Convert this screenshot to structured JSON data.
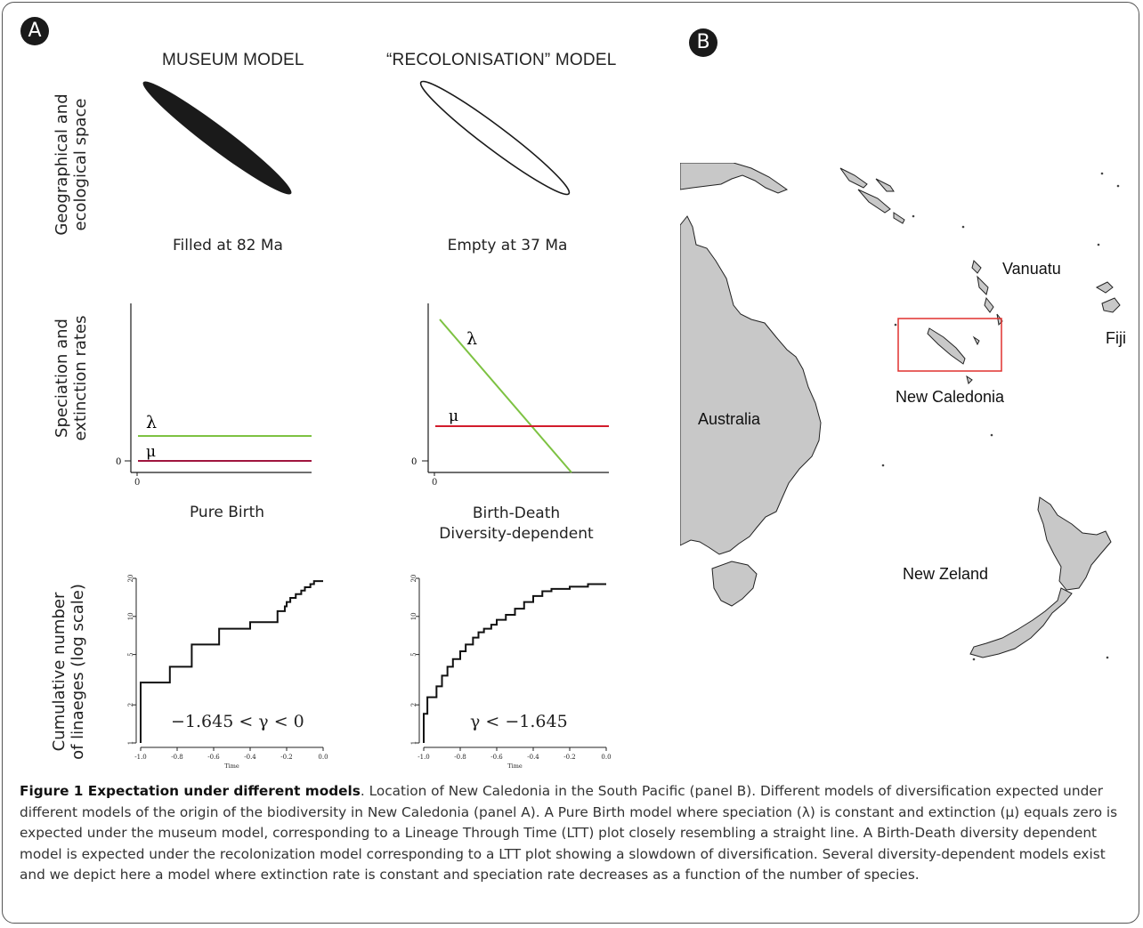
{
  "panel_a": {
    "badge": "A",
    "col_museum": "MUSEUM MODEL",
    "col_recolonisation": "“RECOLONISATION” MODEL",
    "row1_label": [
      "Geographical and",
      "ecological space"
    ],
    "row2_label": [
      "Speciation and",
      "extinction rates"
    ],
    "row3_label": [
      "Cumulative number",
      "of linaeges (log scale)"
    ],
    "museum_space_label": "Filled at 82 Ma",
    "recol_space_label": "Empty at 37 Ma",
    "museum_rates_label": "Pure Birth",
    "recol_rates_label": [
      "Birth-Death",
      "Diversity-dependent"
    ],
    "lambda_symbol": "λ",
    "mu_symbol": "μ",
    "zero_tick": "0",
    "museum_gamma": "−1.645 < γ < 0",
    "recol_gamma": "γ < −1.645",
    "ltt_ylabel_ticks": [
      "1",
      "2",
      "5",
      "10",
      "20"
    ],
    "ltt_xlabel_ticks": [
      "-1.0",
      "-0.8",
      "-0.6",
      "-0.4",
      "-0.2",
      "0.0"
    ],
    "ltt_time_label": "Time",
    "colors": {
      "lambda": "#7dc242",
      "mu": "#d21c2b",
      "mu_museum": "#a0153e",
      "land": "#c8c8c8",
      "box": "#e0312e"
    }
  },
  "panel_b": {
    "badge": "B",
    "labels": {
      "australia": "Australia",
      "vanuatu": "Vanuatu",
      "fiji": "Fiji",
      "new_caledonia": "New Caledonia",
      "new_zealand": "New Zeland"
    }
  },
  "caption": {
    "title": "Figure 1 Expectation under different models",
    "body": ". Location of New Caledonia in the South Pacific (panel B). Different models of diversification expected under different models of the origin of the biodiversity in New Caledonia (panel A). A Pure Birth model where speciation (λ) is constant and extinction (μ) equals zero is expected under the museum model, corresponding to a Lineage Through Time (LTT) plot closely resembling a straight line. A Birth-Death diversity dependent model is expected under the recolonization model corresponding to a LTT plot showing a slowdown of diversification. Several diversity-dependent models exist and we depict here a model where extinction rate is constant and speciation rate decreases as a function of the number of species."
  },
  "chart_data": [
    {
      "type": "line",
      "name": "museum-rates",
      "series": [
        {
          "name": "λ",
          "x": [
            0,
            1
          ],
          "y": [
            0.4,
            0.4
          ]
        },
        {
          "name": "μ",
          "x": [
            0,
            1
          ],
          "y": [
            0,
            0
          ]
        }
      ]
    },
    {
      "type": "line",
      "name": "recolonisation-rates",
      "series": [
        {
          "name": "λ",
          "x": [
            0,
            0.82
          ],
          "y": [
            1.0,
            -0.2
          ]
        },
        {
          "name": "μ",
          "x": [
            0,
            1
          ],
          "y": [
            0.35,
            0.35
          ]
        }
      ]
    },
    {
      "type": "line",
      "name": "museum-ltt",
      "xlabel": "Time",
      "ylim": [
        1,
        20
      ],
      "xlim": [
        -1.0,
        0.0
      ],
      "x": [
        -1.0,
        -0.84,
        -0.72,
        -0.57,
        -0.4,
        -0.37,
        -0.25,
        -0.21,
        -0.2,
        -0.18,
        -0.15,
        -0.12,
        -0.1,
        -0.07,
        -0.05,
        -0.02
      ],
      "y": [
        2,
        3,
        4,
        6,
        8,
        9,
        9,
        11,
        12,
        13,
        14,
        15,
        16,
        17,
        18,
        19
      ]
    },
    {
      "type": "line",
      "name": "recolonisation-ltt",
      "xlabel": "Time",
      "ylim": [
        1,
        20
      ],
      "xlim": [
        -1.0,
        0.0
      ],
      "x": [
        -0.98,
        -0.93,
        -0.9,
        -0.87,
        -0.84,
        -0.8,
        -0.77,
        -0.73,
        -0.7,
        -0.67,
        -0.63,
        -0.6,
        -0.55,
        -0.5,
        -0.45,
        -0.4,
        -0.35,
        -0.3,
        -0.2,
        -0.1,
        -0.02
      ],
      "y": [
        1.7,
        2.3,
        2.8,
        3.4,
        4,
        4.6,
        5.3,
        6,
        6.8,
        7.5,
        8,
        8.6,
        9.4,
        10.3,
        11.5,
        13,
        14.5,
        15.8,
        16.5,
        17.2,
        18
      ]
    }
  ]
}
